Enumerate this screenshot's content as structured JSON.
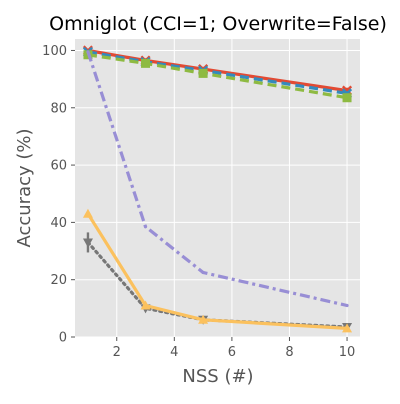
{
  "chart_data": {
    "type": "line",
    "title": "Omniglot (CCI=1; Overwrite=False)",
    "xlabel": "NSS (#)",
    "ylabel": "Accuracy (%)",
    "xlim": [
      0.55,
      10.45
    ],
    "ylim": [
      0,
      104
    ],
    "x_ticks": [
      2,
      4,
      6,
      8,
      10
    ],
    "y_ticks": [
      0,
      20,
      40,
      60,
      80,
      100
    ],
    "grid": true,
    "style": "ggplot",
    "series": [
      {
        "x": [
          1,
          3,
          5,
          10
        ],
        "values": [
          100,
          96.5,
          93.5,
          86
        ],
        "color": "#E24A33",
        "dash": "solid",
        "marker": "x",
        "error": [
          0.5,
          0.8,
          0.8,
          1.0
        ]
      },
      {
        "x": [
          1,
          3,
          5,
          10
        ],
        "values": [
          99.5,
          96,
          93,
          85
        ],
        "color": "#348ABD",
        "dash": "dashed",
        "marker": "x",
        "error": [
          0.5,
          0.6,
          0.6,
          0.8
        ]
      },
      {
        "x": [
          1,
          3,
          5,
          10
        ],
        "values": [
          98.5,
          95.5,
          92,
          83.5
        ],
        "color": "#8EBA42",
        "dash": "dashed",
        "marker": "square",
        "error": [
          0.5,
          0.8,
          0.8,
          0.8
        ]
      },
      {
        "x": [
          1,
          3,
          5,
          10
        ],
        "values": [
          99.5,
          38.5,
          22.5,
          11
        ],
        "color": "#988ED5",
        "dash": "dashdot",
        "marker": "none",
        "error": [
          0,
          0,
          0,
          0
        ]
      },
      {
        "x": [
          1,
          3,
          5,
          10
        ],
        "values": [
          33,
          10,
          6,
          3.5
        ],
        "color": "#777777",
        "dash": "dotted",
        "marker": "triangle-down",
        "error": [
          3.5,
          0.5,
          0.5,
          0.5
        ]
      },
      {
        "x": [
          1,
          3,
          5,
          10
        ],
        "values": [
          43,
          11,
          6,
          3
        ],
        "color": "#FBC15E",
        "dash": "solid",
        "marker": "triangle-up",
        "error": [
          0,
          0,
          0,
          0
        ]
      }
    ]
  }
}
